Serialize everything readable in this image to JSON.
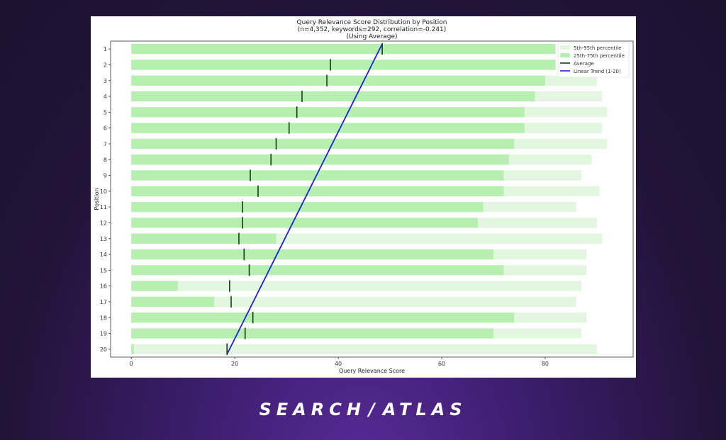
{
  "chart_data": {
    "type": "bar",
    "title": "Query Relevance Score Distribution by Position",
    "subtitle": "(n=4,352, keywords=292, correlation=-0.241)",
    "subtitle2": "(Using Average)",
    "xlabel": "Query Relevance Score",
    "ylabel": "Position",
    "xlim": [
      -4,
      97
    ],
    "xticks": [
      "0",
      "20",
      "40",
      "60",
      "80"
    ],
    "categories": [
      "1",
      "2",
      "3",
      "4",
      "5",
      "6",
      "7",
      "8",
      "9",
      "10",
      "11",
      "12",
      "13",
      "14",
      "15",
      "16",
      "17",
      "18",
      "19",
      "20"
    ],
    "p5_95": [
      [
        0,
        82
      ],
      [
        0,
        82
      ],
      [
        0,
        90
      ],
      [
        0,
        91
      ],
      [
        0,
        92
      ],
      [
        0,
        91
      ],
      [
        0,
        92
      ],
      [
        0,
        89
      ],
      [
        0,
        87
      ],
      [
        0,
        90.5
      ],
      [
        0,
        86
      ],
      [
        0,
        90
      ],
      [
        0,
        91
      ],
      [
        0,
        88
      ],
      [
        0,
        88
      ],
      [
        0,
        87
      ],
      [
        0,
        86
      ],
      [
        0,
        88
      ],
      [
        0,
        87
      ],
      [
        0,
        90
      ]
    ],
    "p25_75": [
      [
        0,
        82
      ],
      [
        0,
        82
      ],
      [
        0,
        80
      ],
      [
        0,
        78
      ],
      [
        0,
        76
      ],
      [
        0,
        76
      ],
      [
        0,
        74
      ],
      [
        0,
        73
      ],
      [
        0,
        72
      ],
      [
        0,
        72
      ],
      [
        0,
        68
      ],
      [
        0,
        67
      ],
      [
        0,
        28
      ],
      [
        0,
        70
      ],
      [
        0,
        72
      ],
      [
        0,
        9
      ],
      [
        0,
        16
      ],
      [
        0,
        74
      ],
      [
        0,
        70
      ],
      [
        0,
        0.5
      ]
    ],
    "average": [
      48.5,
      38.5,
      37.8,
      33,
      32,
      30.5,
      28,
      27,
      23,
      24.5,
      21.5,
      21.5,
      20.8,
      21.8,
      22.8,
      19,
      19.3,
      23.5,
      22,
      18.5
    ],
    "trend": {
      "start": {
        "position": 1,
        "value": 48.5
      },
      "end": {
        "position": 20,
        "value": 18.5
      }
    },
    "legend": {
      "placement": "top-right",
      "entries": [
        "5th-95th percentile",
        "25th-75th percentile",
        "Average",
        "Linear Trend (1-20)"
      ]
    },
    "colors": {
      "p5_95": "#e3f7e0",
      "p25_75": "#b6efb0",
      "average": "#1a3a1a",
      "trend": "#1a22d8"
    },
    "grid": false
  },
  "brand": {
    "left": "SEARCH",
    "slash": "/",
    "right": "ATLAS"
  }
}
